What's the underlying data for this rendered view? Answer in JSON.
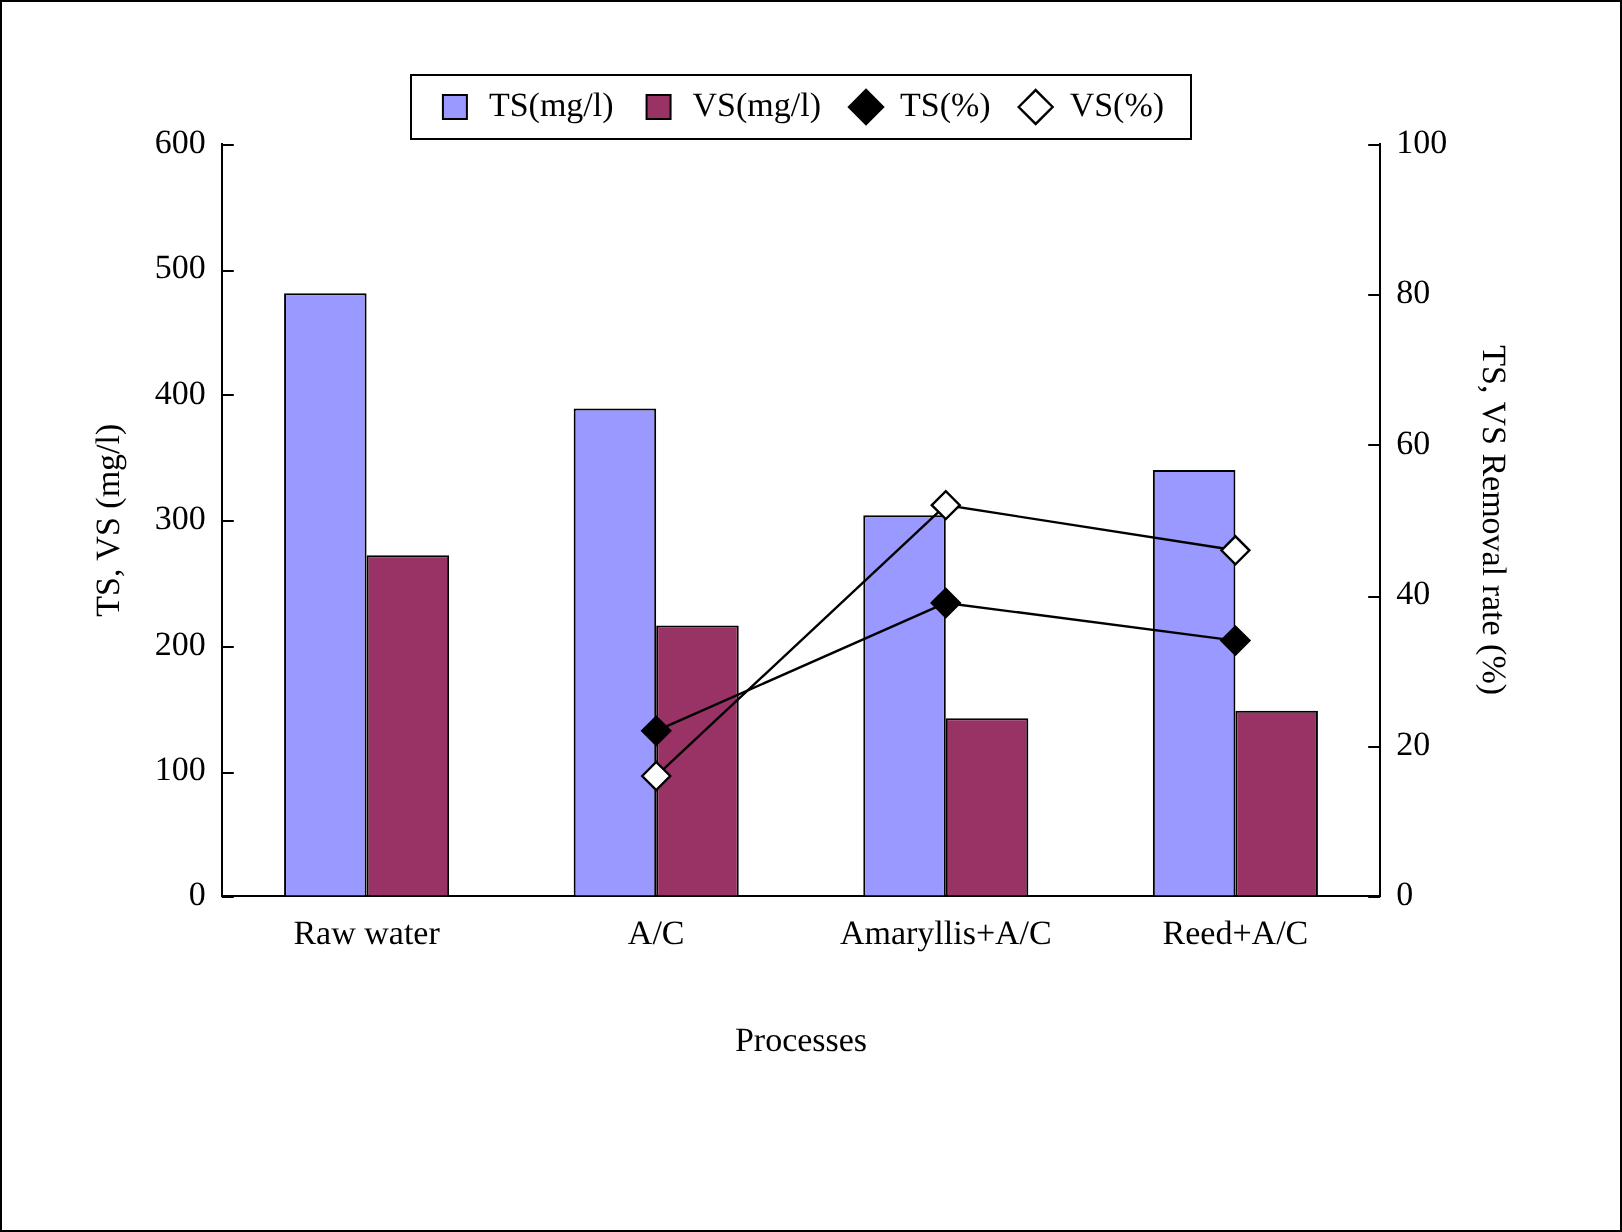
{
  "chart_data": {
    "type": "bar",
    "xlabel": "Processes",
    "ylabel": "TS, VS (mg/l)",
    "y2label": "TS, VS Removal rate (%)",
    "categories": [
      "Raw water",
      "A/C",
      "Amaryllis+A/C",
      "Reed+A/C"
    ],
    "series": [
      {
        "name": "TS(mg/l)",
        "color": "#9999ff",
        "values": [
          481,
          389,
          304,
          340
        ]
      },
      {
        "name": "VS(mg/l)",
        "color": "#993366",
        "values": [
          272,
          216,
          142,
          148
        ]
      },
      {
        "name": "TS(%)",
        "type": "line",
        "axis": "y2",
        "color": "#000000",
        "marker": "diamond",
        "values": [
          null,
          22,
          39,
          34
        ]
      },
      {
        "name": "VS(%)",
        "type": "line",
        "axis": "y2",
        "color": "#000000",
        "marker": "diamond",
        "values": [
          null,
          16,
          52,
          46
        ]
      }
    ],
    "ylim": [
      0,
      600
    ],
    "yticks": [
      0,
      100,
      200,
      300,
      400,
      500,
      600
    ],
    "y2lim": [
      0,
      100
    ],
    "y2ticks": [
      0,
      20,
      40,
      60,
      80,
      100
    ],
    "grid": false,
    "legend": "top"
  }
}
